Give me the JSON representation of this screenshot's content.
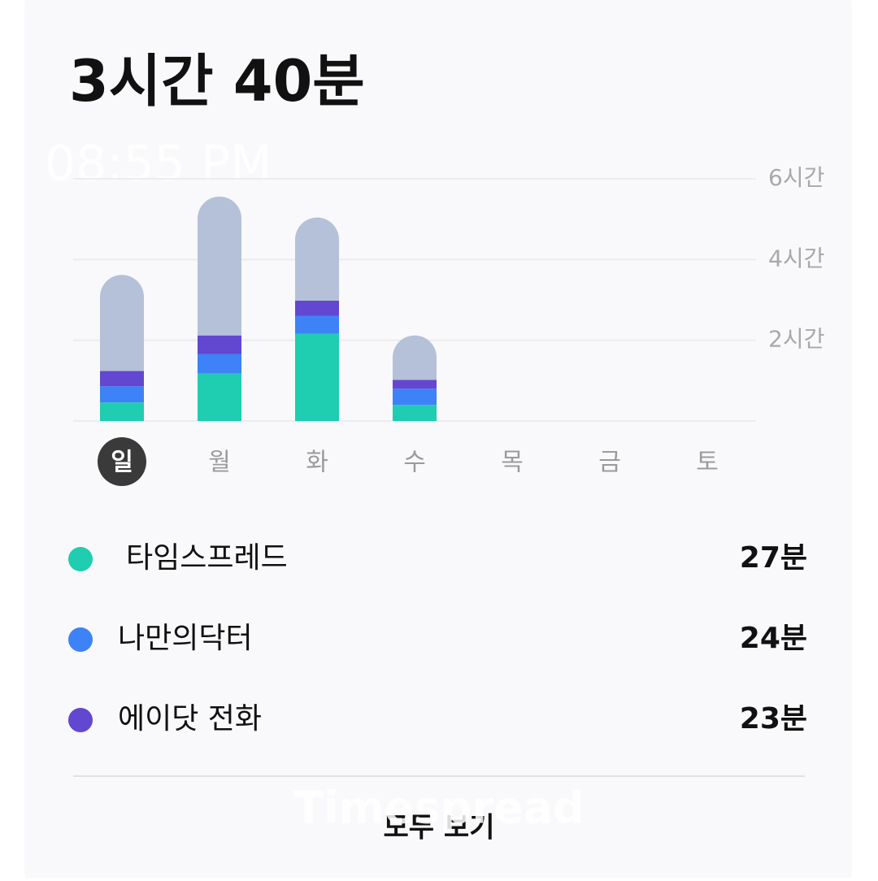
{
  "total": "3시간 40분",
  "overlay_time": "08:55 PM",
  "watermark": "Timespread",
  "chart_data": {
    "type": "stacked-bar",
    "categories": [
      "일",
      "월",
      "화",
      "수",
      "목",
      "금",
      "토"
    ],
    "series": [
      {
        "name": "타임스프레드",
        "color": "#1fcdb0",
        "values": [
          0.46,
          1.18,
          2.16,
          0.4,
          null,
          null,
          null
        ]
      },
      {
        "name": "나만의닥터",
        "color": "#3d82f6",
        "values": [
          0.4,
          0.48,
          0.44,
          0.4,
          null,
          null,
          null
        ]
      },
      {
        "name": "에이닷 전화",
        "color": "#6247d0",
        "values": [
          0.38,
          0.46,
          0.38,
          0.22,
          null,
          null,
          null
        ]
      },
      {
        "color": "#b4c1d8",
        "values": [
          2.38,
          3.44,
          2.06,
          1.1,
          null,
          null,
          null
        ]
      }
    ],
    "ylim": [
      0,
      6
    ],
    "yticks": [
      {
        "value": 2,
        "label": "2시간"
      },
      {
        "value": 4,
        "label": "4시간"
      },
      {
        "value": 6,
        "label": "6시간"
      }
    ],
    "grid": true
  },
  "legend_totals": [
    "27분",
    "24분",
    "23분"
  ],
  "button": "모두 보기"
}
